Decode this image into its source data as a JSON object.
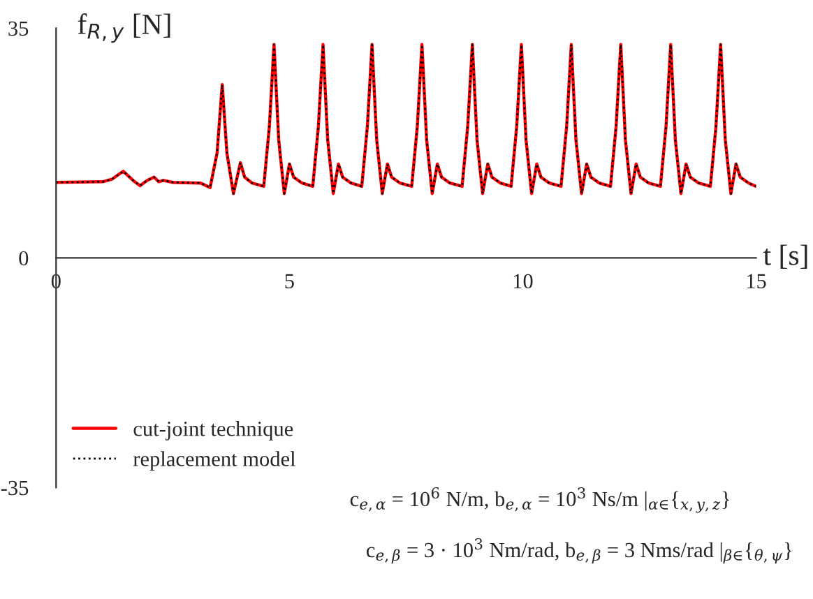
{
  "chart_data": {
    "type": "line",
    "xlabel": "t [s]",
    "ylabel": "f$_{R,y}$ [N]",
    "x": [
      0,
      1.0,
      1.2,
      1.44,
      1.65,
      1.8,
      1.95,
      2.1,
      2.2,
      2.3,
      2.5,
      3.1,
      3.3,
      3.45,
      3.56,
      3.66,
      3.8,
      3.95,
      4.04,
      4.2,
      4.45,
      4.57,
      4.67,
      4.77,
      4.89,
      5.0,
      5.09,
      5.27,
      5.5,
      5.62,
      5.72,
      5.82,
      5.94,
      6.05,
      6.14,
      6.32,
      6.55,
      6.67,
      6.77,
      6.87,
      6.99,
      7.1,
      7.19,
      7.37,
      7.62,
      7.74,
      7.84,
      7.94,
      8.06,
      8.17,
      8.26,
      8.44,
      8.7,
      8.82,
      8.92,
      9.02,
      9.14,
      9.25,
      9.34,
      9.52,
      9.75,
      9.87,
      9.97,
      10.07,
      10.19,
      10.3,
      10.39,
      10.57,
      10.82,
      10.94,
      11.04,
      11.14,
      11.26,
      11.37,
      11.46,
      11.64,
      11.88,
      12.0,
      12.1,
      12.2,
      12.32,
      12.43,
      12.52,
      12.7,
      12.95,
      13.07,
      13.17,
      13.27,
      13.39,
      13.5,
      13.59,
      13.77,
      14.02,
      14.14,
      14.24,
      14.34,
      14.46,
      14.57,
      14.66,
      14.84,
      15.0
    ],
    "series": [
      {
        "name": "cut-joint technique",
        "color": "#ff0000",
        "line_style": "solid",
        "values": [
          11.5,
          11.6,
          12.0,
          13.2,
          11.8,
          11.0,
          11.8,
          12.3,
          11.6,
          11.8,
          11.5,
          11.4,
          10.7,
          16,
          26.4,
          16,
          9.8,
          14.5,
          12.3,
          11.4,
          10.9,
          20,
          32.5,
          18,
          9.8,
          14.3,
          12.3,
          11.4,
          10.9,
          20,
          32.5,
          18,
          9.8,
          14.3,
          12.3,
          11.4,
          10.9,
          20,
          32.5,
          18,
          9.8,
          14.3,
          12.3,
          11.4,
          10.9,
          20,
          32.5,
          18,
          9.8,
          14.3,
          12.3,
          11.4,
          10.9,
          20,
          32.5,
          18,
          9.8,
          14.3,
          12.3,
          11.4,
          10.9,
          20,
          32.5,
          18,
          9.8,
          14.3,
          12.3,
          11.4,
          10.9,
          20,
          32.5,
          18,
          9.8,
          14.3,
          12.3,
          11.4,
          10.9,
          20,
          32.5,
          18,
          9.8,
          14.3,
          12.3,
          11.4,
          10.9,
          20,
          32.5,
          18,
          9.8,
          14.3,
          12.3,
          11.4,
          10.9,
          20,
          32.5,
          18,
          9.8,
          14.3,
          12.3,
          11.4,
          10.9
        ]
      },
      {
        "name": "replacement model",
        "color": "#000000",
        "line_style": "dotted",
        "values": [
          11.5,
          11.6,
          12.0,
          13.2,
          11.8,
          11.0,
          11.8,
          12.3,
          11.6,
          11.8,
          11.5,
          11.4,
          10.7,
          16,
          26.4,
          16,
          9.8,
          14.5,
          12.3,
          11.4,
          10.9,
          20,
          32.5,
          18,
          9.8,
          14.3,
          12.3,
          11.4,
          10.9,
          20,
          32.5,
          18,
          9.8,
          14.3,
          12.3,
          11.4,
          10.9,
          20,
          32.5,
          18,
          9.8,
          14.3,
          12.3,
          11.4,
          10.9,
          20,
          32.5,
          18,
          9.8,
          14.3,
          12.3,
          11.4,
          10.9,
          20,
          32.5,
          18,
          9.8,
          14.3,
          12.3,
          11.4,
          10.9,
          20,
          32.5,
          18,
          9.8,
          14.3,
          12.3,
          11.4,
          10.9,
          20,
          32.5,
          18,
          9.8,
          14.3,
          12.3,
          11.4,
          10.9,
          20,
          32.5,
          18,
          9.8,
          14.3,
          12.3,
          11.4,
          10.9,
          20,
          32.5,
          18,
          9.8,
          14.3,
          12.3,
          11.4,
          10.9,
          20,
          32.5,
          18,
          9.8,
          14.3,
          12.3,
          11.4,
          10.9
        ]
      }
    ],
    "xlim": [
      0,
      15
    ],
    "xticks": [
      0,
      5,
      10,
      15
    ],
    "ylim": [
      -35,
      35
    ],
    "yticks": [
      {
        "value": -35,
        "label": "-35"
      },
      0,
      35
    ],
    "grid": false,
    "legend": "bottom left",
    "marker": "none",
    "annotations": [
      "c$_{e,α}$ = 10$^{6}$ N/m, b$_{e,α}$ = 10$^{3}$ Ns/m |$_{α∈}${$_{x,y,z}$}",
      "c$_{e,β}$ = 3 · 10$^{3}$ Nm/rad, b$_{e,β}$ = 3 Nms/rad |$_{β∈}${$_{θ,ψ}$}"
    ]
  }
}
